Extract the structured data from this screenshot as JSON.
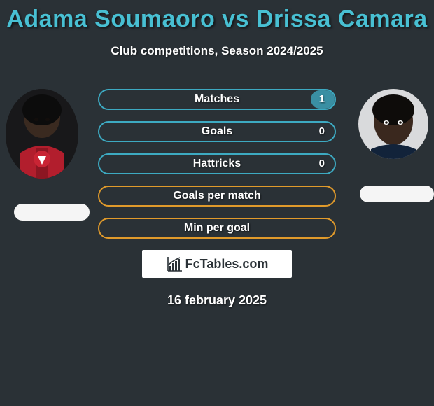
{
  "title": "Adama Soumaoro vs Drissa Camara",
  "subtitle": "Club competitions, Season 2024/2025",
  "date": "16 february 2025",
  "logo": {
    "prefix": "Fc",
    "suffix": "Tables.com"
  },
  "colors": {
    "background": "#2a3136",
    "title": "#48c0d3",
    "bar_border_blue": "#3daac2",
    "bar_fill_blue": "#3a8fa3",
    "bar_border_orange": "#e09a2b",
    "flag": "#f5f5f5",
    "text": "#ffffff"
  },
  "stats": [
    {
      "label": "Matches",
      "value_right": "1",
      "fill_side": "right",
      "fill_pct": 10,
      "variant": "blue"
    },
    {
      "label": "Goals",
      "value_right": "0",
      "fill_side": "none",
      "fill_pct": 0,
      "variant": "blue"
    },
    {
      "label": "Hattricks",
      "value_right": "0",
      "fill_side": "none",
      "fill_pct": 0,
      "variant": "blue"
    },
    {
      "label": "Goals per match",
      "value_right": "",
      "fill_side": "none",
      "fill_pct": 0,
      "variant": "orange"
    },
    {
      "label": "Min per goal",
      "value_right": "",
      "fill_side": "none",
      "fill_pct": 0,
      "variant": "orange"
    }
  ]
}
